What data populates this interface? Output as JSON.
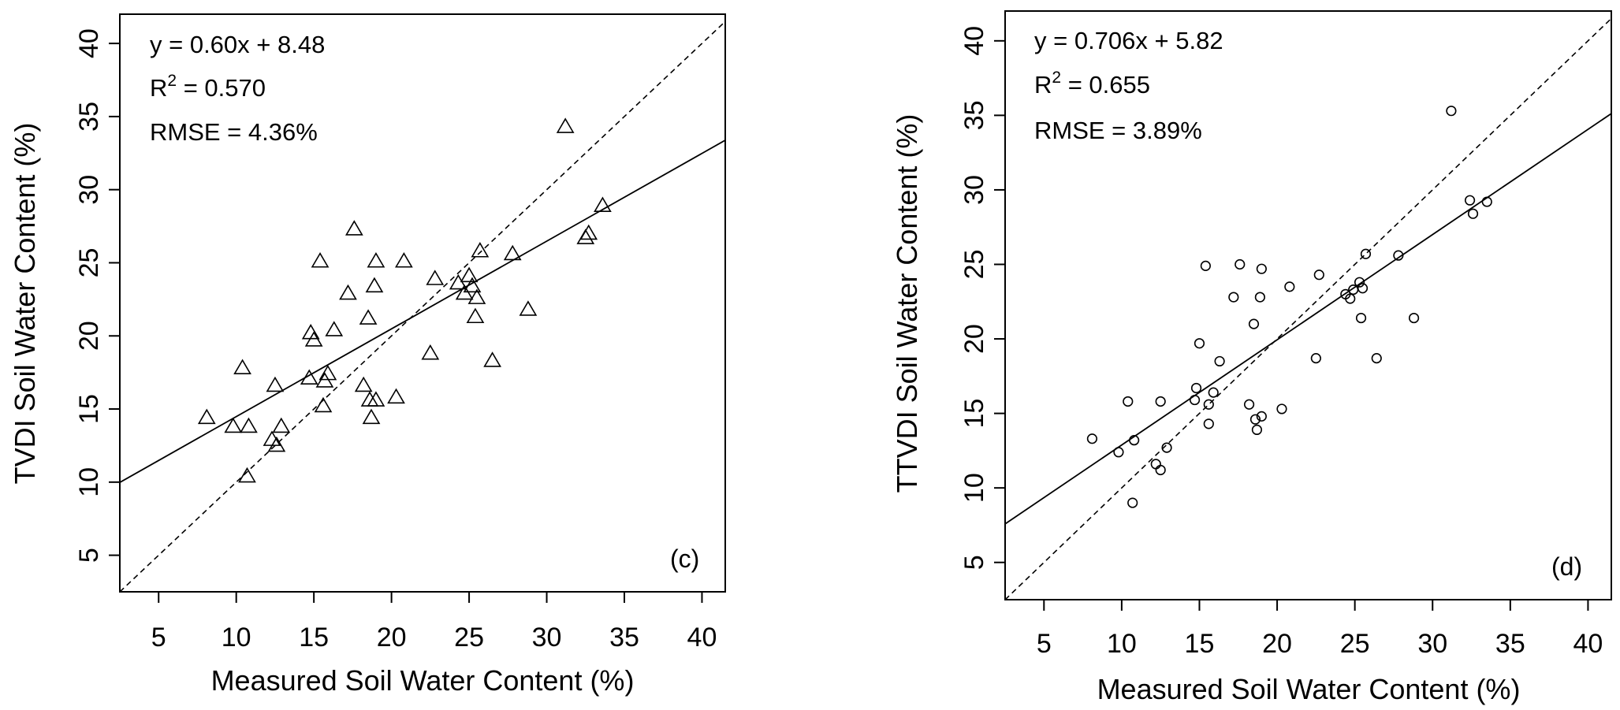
{
  "chart_data": [
    {
      "type": "scatter",
      "panel_label": "(c)",
      "marker": "triangle",
      "xlabel": "Measured Soil Water Content (%)",
      "ylabel": "TVDI Soil Water Content (%)",
      "xlim": [
        2.5,
        41.5
      ],
      "ylim": [
        2.5,
        42
      ],
      "xticks": [
        "5",
        "10",
        "15",
        "20",
        "25",
        "30",
        "35",
        "40"
      ],
      "yticks": [
        "5",
        "10",
        "15",
        "20",
        "25",
        "30",
        "35",
        "40"
      ],
      "annotations": {
        "equation": "y = 0.60x + 8.48",
        "r2_prefix": "R",
        "r2_sup": "2",
        "r2_value": " = 0.570",
        "rmse": "RMSE = 4.36%"
      },
      "regression": {
        "slope": 0.6,
        "intercept": 8.48
      },
      "one_to_one_line": true,
      "points": [
        [
          8.1,
          14.4
        ],
        [
          9.8,
          13.8
        ],
        [
          10.4,
          17.8
        ],
        [
          10.8,
          13.8
        ],
        [
          10.7,
          10.4
        ],
        [
          12.3,
          12.9
        ],
        [
          12.6,
          12.5
        ],
        [
          12.5,
          16.6
        ],
        [
          12.9,
          13.8
        ],
        [
          14.7,
          17.1
        ],
        [
          14.8,
          20.2
        ],
        [
          15.0,
          19.7
        ],
        [
          15.4,
          25.1
        ],
        [
          15.6,
          15.2
        ],
        [
          15.7,
          16.9
        ],
        [
          15.9,
          17.4
        ],
        [
          16.3,
          20.4
        ],
        [
          17.2,
          22.9
        ],
        [
          17.6,
          27.3
        ],
        [
          18.2,
          16.6
        ],
        [
          18.5,
          21.2
        ],
        [
          18.6,
          15.6
        ],
        [
          18.7,
          14.4
        ],
        [
          18.9,
          23.4
        ],
        [
          19.0,
          25.1
        ],
        [
          19.0,
          15.6
        ],
        [
          20.3,
          15.8
        ],
        [
          20.8,
          25.1
        ],
        [
          22.5,
          18.8
        ],
        [
          22.8,
          23.9
        ],
        [
          24.3,
          23.6
        ],
        [
          24.7,
          22.9
        ],
        [
          25.0,
          24.1
        ],
        [
          25.2,
          23.4
        ],
        [
          25.4,
          21.3
        ],
        [
          25.5,
          22.6
        ],
        [
          25.7,
          25.8
        ],
        [
          26.5,
          18.3
        ],
        [
          27.8,
          25.6
        ],
        [
          28.8,
          21.8
        ],
        [
          31.2,
          34.3
        ],
        [
          32.5,
          26.7
        ],
        [
          32.7,
          27.0
        ],
        [
          33.6,
          28.9
        ]
      ]
    },
    {
      "type": "scatter",
      "panel_label": "(d)",
      "marker": "circle",
      "xlabel": "Measured Soil Water Content (%)",
      "ylabel": "TTVDI Soil Water Content (%)",
      "xlim": [
        2.5,
        41.5
      ],
      "ylim": [
        2.5,
        42
      ],
      "xticks": [
        "5",
        "10",
        "15",
        "20",
        "25",
        "30",
        "35",
        "40"
      ],
      "yticks": [
        "5",
        "10",
        "15",
        "20",
        "25",
        "30",
        "35",
        "40"
      ],
      "annotations": {
        "equation": "y = 0.706x + 5.82",
        "r2_prefix": "R",
        "r2_sup": "2",
        "r2_value": " = 0.655",
        "rmse": "RMSE = 3.89%"
      },
      "regression": {
        "slope": 0.706,
        "intercept": 5.82
      },
      "one_to_one_line": true,
      "points": [
        [
          8.1,
          13.3
        ],
        [
          9.8,
          12.4
        ],
        [
          10.4,
          15.8
        ],
        [
          10.8,
          13.2
        ],
        [
          10.7,
          9.0
        ],
        [
          12.2,
          11.6
        ],
        [
          12.5,
          11.2
        ],
        [
          12.5,
          15.8
        ],
        [
          12.9,
          12.7
        ],
        [
          14.7,
          15.9
        ],
        [
          14.8,
          16.7
        ],
        [
          15.0,
          19.7
        ],
        [
          15.4,
          24.9
        ],
        [
          15.6,
          14.3
        ],
        [
          15.6,
          15.6
        ],
        [
          15.9,
          16.4
        ],
        [
          16.3,
          18.5
        ],
        [
          17.2,
          22.8
        ],
        [
          17.6,
          25.0
        ],
        [
          18.2,
          15.6
        ],
        [
          18.5,
          21.0
        ],
        [
          18.6,
          14.6
        ],
        [
          18.7,
          13.9
        ],
        [
          18.9,
          22.8
        ],
        [
          19.0,
          24.7
        ],
        [
          19.0,
          14.8
        ],
        [
          20.3,
          15.3
        ],
        [
          20.8,
          23.5
        ],
        [
          22.5,
          18.7
        ],
        [
          22.7,
          24.3
        ],
        [
          24.4,
          23.0
        ],
        [
          24.7,
          22.7
        ],
        [
          24.9,
          23.3
        ],
        [
          25.3,
          23.8
        ],
        [
          25.4,
          21.4
        ],
        [
          25.5,
          23.4
        ],
        [
          25.7,
          25.7
        ],
        [
          26.4,
          18.7
        ],
        [
          27.8,
          25.6
        ],
        [
          28.8,
          21.4
        ],
        [
          31.2,
          35.3
        ],
        [
          32.4,
          29.3
        ],
        [
          32.6,
          28.4
        ],
        [
          33.5,
          29.2
        ]
      ]
    }
  ]
}
